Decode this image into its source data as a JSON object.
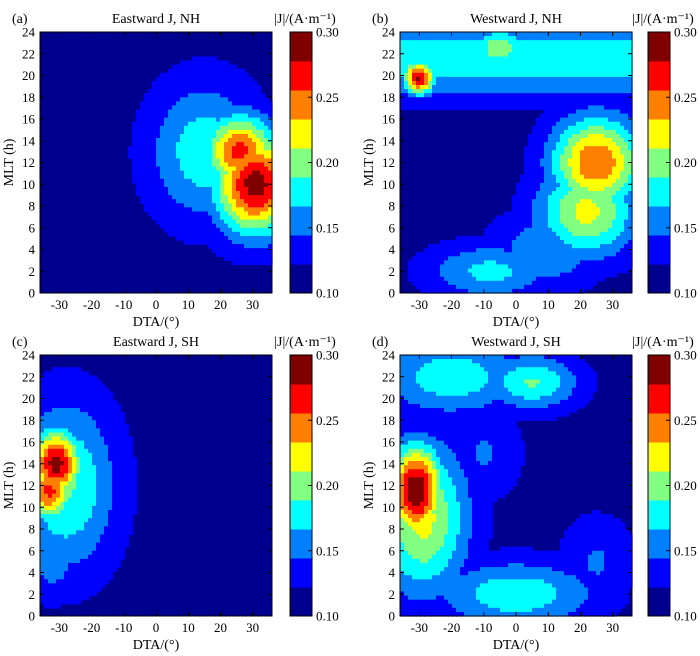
{
  "colors": {
    "colormap": [
      "#00008f",
      "#0000ff",
      "#0080ff",
      "#00ffff",
      "#80ff80",
      "#ffff00",
      "#ff8000",
      "#ff0000",
      "#800000"
    ],
    "background_level": "#00008f"
  },
  "chart_data": [
    {
      "type": "heatmap",
      "label": "(a)",
      "title": "Eastward J, NH",
      "xlabel": "DTA/(°)",
      "ylabel": "MLT (h)",
      "xlim": [
        -36,
        36
      ],
      "ylim": [
        0,
        24
      ],
      "xticks": [
        -30,
        -20,
        -10,
        0,
        10,
        20,
        30
      ],
      "xtick_labels": [
        "-30",
        "-20",
        "-10",
        "0",
        "10",
        "20",
        "30"
      ],
      "yticks": [
        0,
        2,
        4,
        6,
        8,
        10,
        12,
        14,
        16,
        18,
        20,
        22,
        24
      ],
      "ytick_labels": [
        "0",
        "2",
        "4",
        "6",
        "8",
        "10",
        "12",
        "14",
        "16",
        "18",
        "20",
        "22",
        "24"
      ],
      "colorbar": {
        "title": "|J|/(A·m⁻¹)",
        "range": [
          0.1,
          0.3
        ],
        "ticks": [
          "0.10",
          "0.15",
          "0.20",
          "0.25",
          "0.30"
        ]
      },
      "features": [
        {
          "kind": "blob",
          "dta": 31,
          "mlt": 10,
          "peak": 0.3,
          "sdx": 9,
          "sdy": 3.2
        },
        {
          "kind": "blob",
          "dta": 26,
          "mlt": 13,
          "peak": 0.27,
          "sdx": 8,
          "sdy": 2.4
        },
        {
          "kind": "blob",
          "dta": 15,
          "mlt": 13,
          "peak": 0.18,
          "sdx": 12,
          "sdy": 4.5
        },
        {
          "kind": "blob",
          "dta": 28,
          "mlt": 6,
          "peak": 0.15,
          "sdx": 8,
          "sdy": 2
        }
      ]
    },
    {
      "type": "heatmap",
      "label": "(b)",
      "title": "Westward J, NH",
      "xlabel": "DTA/(°)",
      "ylabel": "MLT (h)",
      "xlim": [
        -36,
        36
      ],
      "ylim": [
        0,
        24
      ],
      "xticks": [
        -30,
        -20,
        -10,
        0,
        10,
        20,
        30
      ],
      "xtick_labels": [
        "-30",
        "-20",
        "-10",
        "0",
        "10",
        "20",
        "30"
      ],
      "yticks": [
        0,
        2,
        4,
        6,
        8,
        10,
        12,
        14,
        16,
        18,
        20,
        22,
        24
      ],
      "ytick_labels": [
        "0",
        "2",
        "4",
        "6",
        "8",
        "10",
        "12",
        "14",
        "16",
        "18",
        "20",
        "22",
        "24"
      ],
      "colorbar": {
        "title": "|J|/(A·m⁻¹)",
        "range": [
          0.1,
          0.3
        ],
        "ticks": [
          "0.10",
          "0.15",
          "0.20",
          "0.25",
          "0.30"
        ]
      },
      "features": [
        {
          "kind": "band",
          "mlt": 21.5,
          "peak": 0.18,
          "sdy": 2.4
        },
        {
          "kind": "blob",
          "dta": -30,
          "mlt": 19.8,
          "peak": 0.29,
          "sdx": 3.5,
          "sdy": 1.1
        },
        {
          "kind": "blob",
          "dta": 25,
          "mlt": 12,
          "peak": 0.26,
          "sdx": 10,
          "sdy": 3
        },
        {
          "kind": "blob",
          "dta": 22,
          "mlt": 7.5,
          "peak": 0.22,
          "sdx": 11,
          "sdy": 3
        },
        {
          "kind": "blob",
          "dta": -8,
          "mlt": 2,
          "peak": 0.17,
          "sdx": 14,
          "sdy": 1.8
        },
        {
          "kind": "blob",
          "dta": 10,
          "mlt": 4,
          "peak": 0.16,
          "sdx": 12,
          "sdy": 2.5
        },
        {
          "kind": "blob",
          "dta": -5,
          "mlt": 22.5,
          "peak": 0.21,
          "sdx": 6,
          "sdy": 1.3
        }
      ]
    },
    {
      "type": "heatmap",
      "label": "(c)",
      "title": "Eastward J, SH",
      "xlabel": "DTA/(°)",
      "ylabel": "MLT (h)",
      "xlim": [
        -36,
        36
      ],
      "ylim": [
        0,
        24
      ],
      "xticks": [
        -30,
        -20,
        -10,
        0,
        10,
        20,
        30
      ],
      "xtick_labels": [
        "-30",
        "-20",
        "-10",
        "0",
        "10",
        "20",
        "30"
      ],
      "yticks": [
        0,
        2,
        4,
        6,
        8,
        10,
        12,
        14,
        16,
        18,
        20,
        22,
        24
      ],
      "ytick_labels": [
        "0",
        "2",
        "4",
        "6",
        "8",
        "10",
        "12",
        "14",
        "16",
        "18",
        "20",
        "22",
        "24"
      ],
      "colorbar": {
        "title": "|J|/(A·m⁻¹)",
        "range": [
          0.1,
          0.3
        ],
        "ticks": [
          "0.10",
          "0.15",
          "0.20",
          "0.25",
          "0.30"
        ]
      },
      "features": [
        {
          "kind": "blob",
          "dta": -31,
          "mlt": 14,
          "peak": 0.3,
          "sdx": 5.5,
          "sdy": 2.2
        },
        {
          "kind": "blob",
          "dta": -33,
          "mlt": 11.5,
          "peak": 0.27,
          "sdx": 5,
          "sdy": 2
        },
        {
          "kind": "blob",
          "dta": -28,
          "mlt": 12,
          "peak": 0.19,
          "sdx": 11,
          "sdy": 5.5
        },
        {
          "kind": "blob",
          "dta": -32,
          "mlt": 5,
          "peak": 0.15,
          "sdx": 6,
          "sdy": 2.5
        }
      ]
    },
    {
      "type": "heatmap",
      "label": "(d)",
      "title": "Westward J, SH",
      "xlabel": "DTA/(°)",
      "ylabel": "MLT (h)",
      "xlim": [
        -36,
        36
      ],
      "ylim": [
        0,
        24
      ],
      "xticks": [
        -30,
        -20,
        -10,
        0,
        10,
        20,
        30
      ],
      "xtick_labels": [
        "-30",
        "-20",
        "-10",
        "0",
        "10",
        "20",
        "30"
      ],
      "yticks": [
        0,
        2,
        4,
        6,
        8,
        10,
        12,
        14,
        16,
        18,
        20,
        22,
        24
      ],
      "ytick_labels": [
        "0",
        "2",
        "4",
        "6",
        "8",
        "10",
        "12",
        "14",
        "16",
        "18",
        "20",
        "22",
        "24"
      ],
      "colorbar": {
        "title": "|J|/(A·m⁻¹)",
        "range": [
          0.1,
          0.3
        ],
        "ticks": [
          "0.10",
          "0.15",
          "0.20",
          "0.25",
          "0.30"
        ]
      },
      "features": [
        {
          "kind": "blob",
          "dta": -31,
          "mlt": 11.5,
          "peak": 0.31,
          "sdx": 6,
          "sdy": 3
        },
        {
          "kind": "blob",
          "dta": -29,
          "mlt": 9,
          "peak": 0.22,
          "sdx": 10,
          "sdy": 5
        },
        {
          "kind": "blob",
          "dta": -20,
          "mlt": 22,
          "peak": 0.18,
          "sdx": 16,
          "sdy": 2.5
        },
        {
          "kind": "blob",
          "dta": 5,
          "mlt": 21.5,
          "peak": 0.19,
          "sdx": 10,
          "sdy": 1.8
        },
        {
          "kind": "blob",
          "dta": 0,
          "mlt": 2,
          "peak": 0.18,
          "sdx": 18,
          "sdy": 2.2
        },
        {
          "kind": "blob",
          "dta": 25,
          "mlt": 5,
          "peak": 0.14,
          "sdx": 8,
          "sdy": 3
        },
        {
          "kind": "blob",
          "dta": -10,
          "mlt": 15,
          "peak": 0.14,
          "sdx": 8,
          "sdy": 3
        }
      ]
    }
  ]
}
